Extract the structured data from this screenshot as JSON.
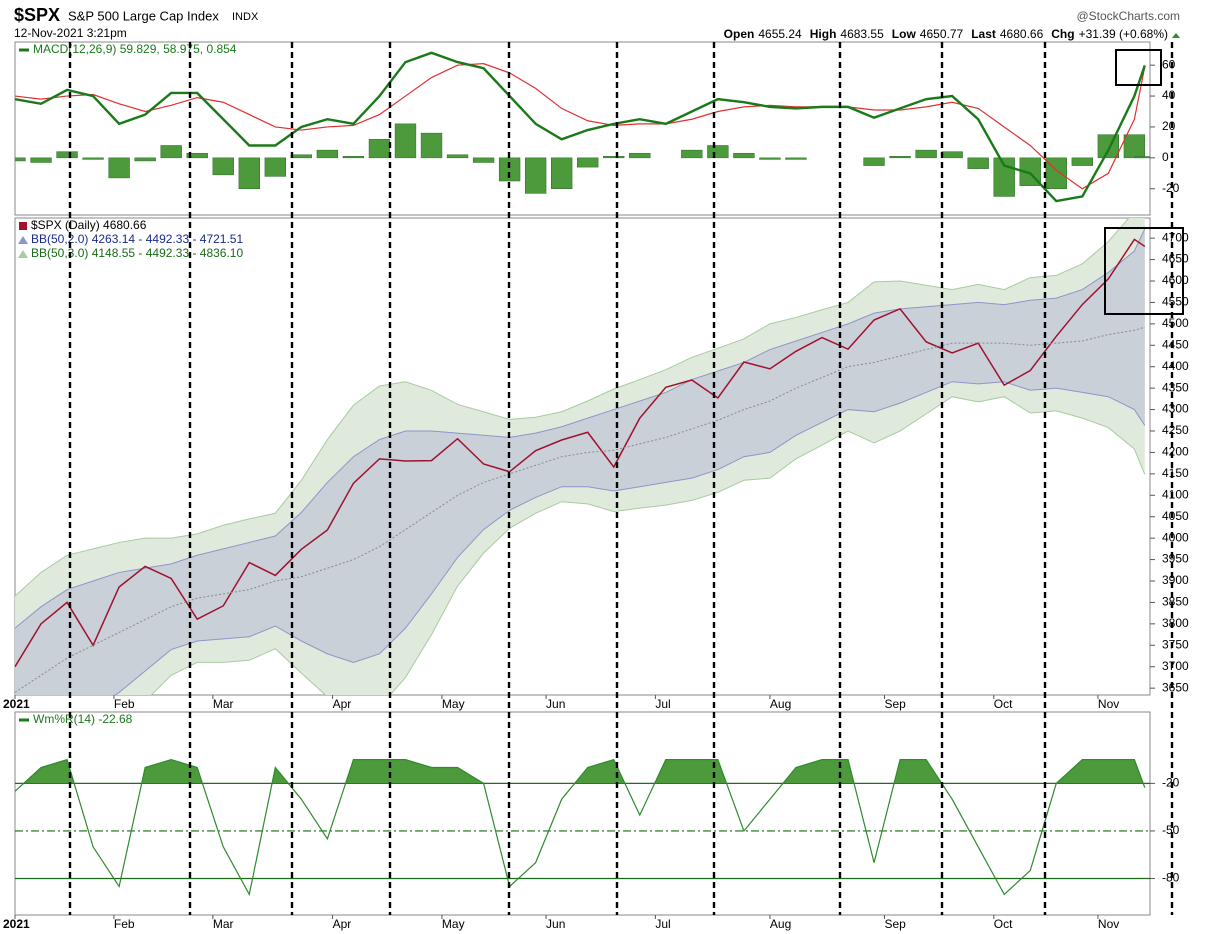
{
  "header": {
    "symbol": "$SPX",
    "name": "S&P 500 Large Cap Index",
    "exchange": "INDX",
    "source": "@StockCharts.com",
    "date": "12-Nov-2021 3:21pm",
    "quote": [
      {
        "label": "Open",
        "value": 4655.24
      },
      {
        "label": "High",
        "value": 4683.55
      },
      {
        "label": "Low",
        "value": 4650.77
      },
      {
        "label": "Last",
        "value": 4680.66
      },
      {
        "label": "Chg",
        "value": "+31.39 (+0.68%)"
      }
    ]
  },
  "chart_data": [
    {
      "type": "line",
      "title": "MACD(12,26,9) 59.829, 58.975, 0.854",
      "title_color": "#1a7a1a",
      "x": [
        0,
        5,
        10,
        15,
        20,
        25,
        30,
        35,
        40,
        45,
        50,
        55,
        60,
        65,
        70,
        75,
        80,
        85,
        90,
        95,
        100,
        105,
        110,
        115,
        120,
        125,
        130,
        135,
        140,
        145,
        150,
        155,
        160,
        165,
        170,
        175,
        180,
        185,
        190,
        195,
        200,
        205,
        210,
        215,
        217
      ],
      "xlim": [
        0,
        218
      ],
      "ylim": [
        -37,
        75
      ],
      "yticks": [
        -20,
        0,
        20,
        40,
        60
      ],
      "grid": false,
      "series": [
        {
          "type": "bar",
          "color": "#4c9a3c",
          "values": [
            -2,
            -3,
            4,
            -1,
            -13,
            -2,
            8,
            3,
            -11,
            -20,
            -12,
            2,
            5,
            1,
            12,
            22,
            16,
            2,
            -3,
            -15,
            -23,
            -20,
            -6,
            1,
            3,
            0,
            5,
            8,
            3,
            -1,
            -1,
            0,
            0,
            -5,
            1,
            5,
            4,
            -7,
            -25,
            -18,
            -20,
            -5,
            15,
            15,
            0.854
          ]
        },
        {
          "type": "line",
          "color": "#e03030",
          "width": 1.2,
          "values": [
            40,
            38,
            40,
            41,
            35,
            30,
            34,
            39,
            36,
            28,
            20,
            18,
            20,
            21,
            28,
            40,
            52,
            60,
            61,
            55,
            45,
            32,
            24,
            21,
            22,
            22,
            25,
            30,
            33,
            34,
            33,
            33,
            33,
            31,
            31,
            33,
            36,
            32,
            20,
            8,
            -8,
            -20,
            -10,
            25,
            58.975
          ]
        },
        {
          "type": "line",
          "color": "#1a7a1a",
          "width": 2.4,
          "values": [
            38,
            35,
            44,
            40,
            22,
            28,
            42,
            42,
            25,
            8,
            8,
            20,
            25,
            22,
            40,
            62,
            68,
            62,
            58,
            40,
            22,
            12,
            18,
            22,
            25,
            22,
            30,
            38,
            36,
            33,
            32,
            33,
            33,
            26,
            32,
            38,
            40,
            25,
            -5,
            -10,
            -28,
            -25,
            5,
            40,
            59.829
          ]
        }
      ]
    },
    {
      "type": "line",
      "x": [
        0,
        5,
        10,
        15,
        20,
        25,
        30,
        35,
        40,
        45,
        50,
        55,
        60,
        65,
        70,
        75,
        80,
        85,
        90,
        95,
        100,
        105,
        110,
        115,
        120,
        125,
        130,
        135,
        140,
        145,
        150,
        155,
        160,
        165,
        170,
        175,
        180,
        185,
        190,
        195,
        200,
        205,
        210,
        215,
        217
      ],
      "xlim": [
        0,
        218
      ],
      "ylim": [
        3634,
        4747
      ],
      "yticks": [
        3650,
        3700,
        3750,
        3800,
        3850,
        3900,
        3950,
        4000,
        4050,
        4100,
        4150,
        4200,
        4250,
        4300,
        4350,
        4400,
        4450,
        4500,
        4550,
        4600,
        4650,
        4700
      ],
      "xticks": [
        {
          "value": 0,
          "label": "2021"
        },
        {
          "value": 19,
          "label": "Feb"
        },
        {
          "value": 38,
          "label": "Mar"
        },
        {
          "value": 61,
          "label": "Apr"
        },
        {
          "value": 82,
          "label": "May"
        },
        {
          "value": 102,
          "label": "Jun"
        },
        {
          "value": 123,
          "label": "Jul"
        },
        {
          "value": 145,
          "label": "Aug"
        },
        {
          "value": 167,
          "label": "Sep"
        },
        {
          "value": 188,
          "label": "Oct"
        },
        {
          "value": 208,
          "label": "Nov"
        }
      ],
      "grid": false,
      "series": [
        {
          "type": "line",
          "name": "$SPX (Daily) 4680.66",
          "color": "#a0112d",
          "width": 1.5,
          "values": [
            3700,
            3800,
            3850,
            3750,
            3886,
            3934,
            3906,
            3811,
            3842,
            3943,
            3913,
            3974,
            4019,
            4128,
            4185,
            4180,
            4181,
            4232,
            4173,
            4155,
            4204,
            4229,
            4247,
            4166,
            4280,
            4352,
            4369,
            4327,
            4411,
            4395,
            4436,
            4468,
            4441,
            4509,
            4535,
            4458,
            4432,
            4455,
            4357,
            4391,
            4471,
            4545,
            4605,
            4697,
            4680.66
          ]
        },
        {
          "type": "band",
          "name": "BB(50,2.0) 4263.14 - 4492.33 - 4721.51",
          "color": "#8d96c8",
          "fill": "#c9d0d8",
          "name_color": "#1a2a8a",
          "upper": [
            3790,
            3840,
            3880,
            3900,
            3920,
            3930,
            3940,
            3960,
            3975,
            3990,
            4005,
            4060,
            4130,
            4190,
            4230,
            4250,
            4250,
            4245,
            4240,
            4235,
            4245,
            4260,
            4280,
            4300,
            4320,
            4340,
            4370,
            4390,
            4410,
            4440,
            4460,
            4480,
            4500,
            4525,
            4535,
            4540,
            4545,
            4550,
            4545,
            4555,
            4560,
            4580,
            4620,
            4670,
            4721.51
          ],
          "lower": [
            3490,
            3520,
            3560,
            3600,
            3640,
            3690,
            3740,
            3760,
            3765,
            3770,
            3795,
            3760,
            3730,
            3710,
            3730,
            3790,
            3870,
            3955,
            4020,
            4065,
            4095,
            4120,
            4120,
            4110,
            4120,
            4130,
            4140,
            4160,
            4190,
            4200,
            4240,
            4270,
            4300,
            4295,
            4315,
            4340,
            4365,
            4360,
            4365,
            4345,
            4350,
            4340,
            4330,
            4300,
            4263.14
          ]
        },
        {
          "type": "band",
          "name": "BB(50,3.0) 4148.55 - 4492.33 - 4836.10",
          "color": "#a8cba0",
          "fill": "#dfeadd",
          "name_color": "#1a6a1a",
          "upper": [
            3865,
            3920,
            3960,
            3975,
            3990,
            4000,
            4000,
            4010,
            4030,
            4045,
            4058,
            4135,
            4230,
            4310,
            4355,
            4365,
            4345,
            4312,
            4295,
            4277,
            4282,
            4295,
            4320,
            4348,
            4370,
            4393,
            4422,
            4443,
            4465,
            4500,
            4515,
            4533,
            4550,
            4598,
            4600,
            4590,
            4580,
            4592,
            4580,
            4608,
            4613,
            4640,
            4692,
            4762,
            4836.1
          ],
          "lower": [
            3415,
            3440,
            3480,
            3525,
            3570,
            3620,
            3680,
            3710,
            3710,
            3715,
            3742,
            3685,
            3630,
            3590,
            3605,
            3675,
            3775,
            3888,
            3965,
            4023,
            4058,
            4085,
            4080,
            4062,
            4070,
            4077,
            4088,
            4107,
            4135,
            4140,
            4185,
            4217,
            4250,
            4222,
            4250,
            4290,
            4330,
            4318,
            4330,
            4292,
            4297,
            4280,
            4258,
            4208,
            4148.55
          ]
        },
        {
          "type": "line",
          "color": "#8a8a8a",
          "width": 1,
          "dash": "2,2",
          "values": [
            3640,
            3680,
            3720,
            3750,
            3780,
            3810,
            3840,
            3860,
            3870,
            3880,
            3900,
            3910,
            3930,
            3950,
            3980,
            4020,
            4060,
            4100,
            4130,
            4150,
            4170,
            4190,
            4200,
            4205,
            4220,
            4235,
            4255,
            4275,
            4300,
            4320,
            4350,
            4375,
            4400,
            4410,
            4425,
            4440,
            4455,
            4455,
            4455,
            4450,
            4455,
            4460,
            4475,
            4485,
            4492.33
          ]
        }
      ]
    },
    {
      "type": "line",
      "title": "Wm%R(14) -22.68",
      "title_color": "#1a7a1a",
      "x": [
        0,
        5,
        10,
        15,
        20,
        25,
        30,
        35,
        40,
        45,
        50,
        55,
        60,
        65,
        70,
        75,
        80,
        85,
        90,
        95,
        100,
        105,
        110,
        115,
        120,
        125,
        130,
        135,
        140,
        145,
        150,
        155,
        160,
        165,
        170,
        175,
        180,
        185,
        190,
        195,
        200,
        205,
        210,
        215,
        217
      ],
      "xlim": [
        0,
        218
      ],
      "ylim": [
        -103,
        25
      ],
      "yticks": [
        -20,
        -50,
        -80
      ],
      "xticks": [
        {
          "value": 0,
          "label": "2021"
        },
        {
          "value": 19,
          "label": "Feb"
        },
        {
          "value": 38,
          "label": "Mar"
        },
        {
          "value": 61,
          "label": "Apr"
        },
        {
          "value": 82,
          "label": "May"
        },
        {
          "value": 102,
          "label": "Jun"
        },
        {
          "value": 123,
          "label": "Jul"
        },
        {
          "value": 145,
          "label": "Aug"
        },
        {
          "value": 167,
          "label": "Sep"
        },
        {
          "value": 188,
          "label": "Oct"
        },
        {
          "value": 208,
          "label": "Nov"
        }
      ],
      "grid": true,
      "series": [
        {
          "type": "line",
          "color": "#2e8a2e",
          "width": 1.2,
          "fill": "#4c9a3c",
          "fill_above": -20,
          "values": [
            -25,
            -10,
            -5,
            -60,
            -85,
            -10,
            -5,
            -10,
            -60,
            -90,
            -10,
            -30,
            -55,
            -5,
            -5,
            -5,
            -10,
            -10,
            -20,
            -85,
            -70,
            -30,
            -10,
            -5,
            -40,
            -5,
            -5,
            -5,
            -50,
            -30,
            -10,
            -5,
            -5,
            -70,
            -5,
            -5,
            -30,
            -60,
            -90,
            -75,
            -20,
            -5,
            -5,
            -5,
            -22.68
          ]
        }
      ]
    }
  ]
}
